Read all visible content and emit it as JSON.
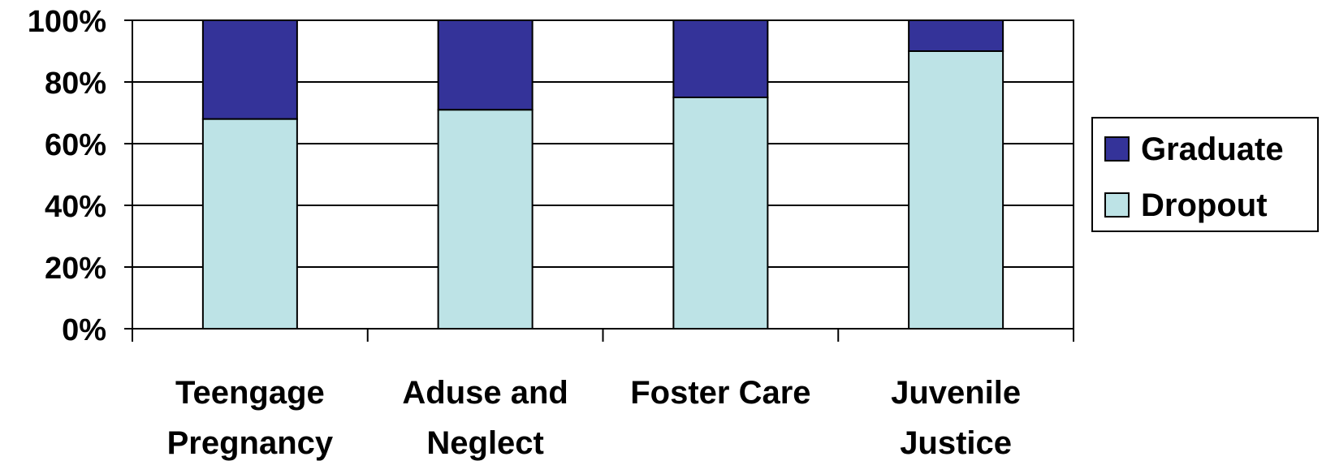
{
  "chart_data": {
    "type": "bar",
    "stacked": true,
    "percent_stacked": true,
    "categories": [
      [
        "Teengage",
        "Pregnancy"
      ],
      [
        "Aduse and",
        "Neglect"
      ],
      [
        "Foster Care"
      ],
      [
        "Juvenile",
        "Justice"
      ]
    ],
    "series": [
      {
        "name": "Dropout",
        "values": [
          68,
          71,
          75,
          90
        ],
        "color": "#bde3e6"
      },
      {
        "name": "Graduate",
        "values": [
          32,
          29,
          25,
          10
        ],
        "color": "#343399"
      }
    ],
    "ylim": [
      0,
      100
    ],
    "yticks": [
      "0%",
      "20%",
      "40%",
      "60%",
      "80%",
      "100%"
    ],
    "grid": true,
    "legend": {
      "position": "right",
      "items": [
        "Graduate",
        "Dropout"
      ]
    }
  }
}
